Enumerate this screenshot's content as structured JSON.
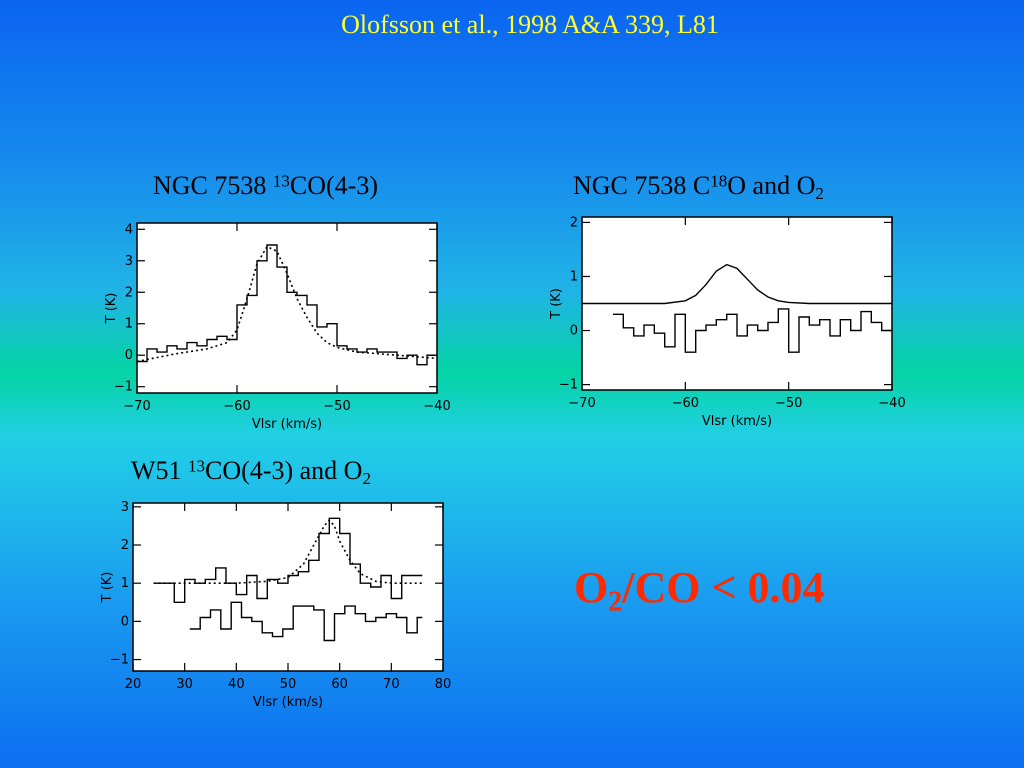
{
  "citation": "Olofsson et al., 1998 A&A 339, L81",
  "panels": [
    {
      "title": {
        "pre": "NGC 7538 ",
        "sup": "13",
        "main": "CO(4-3)",
        "sub": ""
      }
    },
    {
      "title": {
        "pre": "NGC 7538 C",
        "sup": "18",
        "main": "O and O",
        "sub": "2"
      }
    },
    {
      "title": {
        "pre": "W51 ",
        "sup": "13",
        "main": "CO(4-3) and O",
        "sub": "2"
      }
    }
  ],
  "ratio": {
    "pre": "O",
    "sub": "2",
    "post": "/CO < 0.04"
  },
  "chart_data": [
    {
      "type": "line",
      "xlim": [
        -70,
        -40
      ],
      "ylim": [
        -1.2,
        4.2
      ],
      "xticks": [
        -70,
        -60,
        -50,
        -40
      ],
      "xticklabels": [
        "−70",
        "−60",
        "−50",
        "−40"
      ],
      "yticks": [
        -1,
        0,
        1,
        2,
        3,
        4
      ],
      "yticklabels": [
        "−1",
        "0",
        "1",
        "2",
        "3",
        "4"
      ],
      "xlabel": "Vlsr (km/s)",
      "ylabel": "T (K)",
      "series": [
        {
          "style": "histogram",
          "x": [
            -70,
            -69,
            -68,
            -67,
            -66,
            -65,
            -64,
            -63,
            -62,
            -61,
            -60,
            -59,
            -58,
            -57,
            -56,
            -55,
            -54,
            -53,
            -52,
            -51,
            -50,
            -49,
            -48,
            -47,
            -46,
            -45,
            -44,
            -43,
            -42,
            -41,
            -40
          ],
          "y": [
            -0.2,
            0.2,
            0.1,
            0.3,
            0.2,
            0.4,
            0.3,
            0.5,
            0.6,
            0.5,
            1.6,
            1.9,
            3.0,
            3.5,
            2.8,
            2.0,
            1.9,
            1.6,
            0.9,
            1.0,
            0.3,
            0.2,
            0.1,
            0.2,
            0.1,
            0.1,
            -0.1,
            0.0,
            -0.3,
            0.0,
            0.0
          ]
        },
        {
          "style": "dotted",
          "x": [
            -70,
            -66,
            -63,
            -61,
            -60,
            -59,
            -58,
            -57,
            -56,
            -55,
            -54,
            -53,
            -52,
            -51,
            -50,
            -48,
            -46,
            -44,
            -42,
            -40
          ],
          "y": [
            -0.2,
            0.05,
            0.2,
            0.4,
            0.8,
            1.8,
            2.9,
            3.45,
            3.3,
            2.6,
            1.8,
            1.2,
            0.7,
            0.4,
            0.25,
            0.1,
            0.05,
            0.0,
            -0.05,
            -0.1
          ]
        }
      ]
    },
    {
      "type": "line",
      "xlim": [
        -70,
        -40
      ],
      "ylim": [
        -1.1,
        2.1
      ],
      "xticks": [
        -70,
        -60,
        -50,
        -40
      ],
      "xticklabels": [
        "−70",
        "−60",
        "−50",
        "−40"
      ],
      "yticks": [
        -1,
        0,
        1,
        2
      ],
      "yticklabels": [
        "−1",
        "0",
        "1",
        "2"
      ],
      "xlabel": "Vlsr (km/s)",
      "ylabel": "T (K)",
      "series": [
        {
          "style": "solid",
          "x": [
            -70,
            -62,
            -60,
            -59,
            -58,
            -57,
            -56,
            -55,
            -54,
            -53,
            -52,
            -51,
            -50,
            -48,
            -45,
            -40
          ],
          "y": [
            0.5,
            0.5,
            0.55,
            0.65,
            0.85,
            1.1,
            1.22,
            1.15,
            0.95,
            0.75,
            0.62,
            0.55,
            0.52,
            0.5,
            0.5,
            0.5
          ]
        },
        {
          "style": "histogram",
          "x": [
            -67,
            -66,
            -65,
            -64,
            -63,
            -62,
            -61,
            -60,
            -59,
            -58,
            -57,
            -56,
            -55,
            -54,
            -53,
            -52,
            -51,
            -50,
            -49,
            -48,
            -47,
            -46,
            -45,
            -44,
            -43,
            -42,
            -41,
            -40
          ],
          "y": [
            0.3,
            0.05,
            -0.1,
            0.1,
            -0.05,
            -0.3,
            0.3,
            -0.4,
            0.0,
            0.1,
            0.2,
            0.3,
            -0.1,
            0.1,
            0.0,
            0.15,
            0.4,
            -0.4,
            0.25,
            0.1,
            0.2,
            -0.1,
            0.2,
            0.0,
            0.35,
            0.15,
            0.0,
            0.0
          ]
        }
      ]
    },
    {
      "type": "line",
      "xlim": [
        20,
        80
      ],
      "ylim": [
        -1.3,
        3.1
      ],
      "xticks": [
        20,
        30,
        40,
        50,
        60,
        70,
        80
      ],
      "xticklabels": [
        "20",
        "30",
        "40",
        "50",
        "60",
        "70",
        "80"
      ],
      "yticks": [
        -1,
        0,
        1,
        2,
        3
      ],
      "yticklabels": [
        "−1",
        "0",
        "1",
        "2",
        "3"
      ],
      "xlabel": "Vlsr (km/s)",
      "ylabel": "T (K)",
      "series": [
        {
          "style": "histogram",
          "x": [
            24,
            26,
            28,
            30,
            32,
            34,
            36,
            38,
            40,
            42,
            44,
            46,
            48,
            50,
            52,
            54,
            56,
            58,
            60,
            62,
            64,
            66,
            68,
            70,
            72,
            74,
            76
          ],
          "y": [
            1.0,
            1.0,
            0.5,
            1.1,
            1.0,
            1.1,
            1.4,
            1.0,
            0.7,
            1.2,
            0.6,
            1.1,
            1.0,
            1.2,
            1.3,
            1.6,
            2.3,
            2.7,
            2.3,
            1.5,
            1.0,
            0.9,
            1.2,
            0.6,
            1.2,
            1.2,
            1.2
          ]
        },
        {
          "style": "dotted",
          "x": [
            24,
            30,
            40,
            46,
            50,
            53,
            55,
            57,
            58,
            59,
            60,
            62,
            64,
            67,
            70,
            76
          ],
          "y": [
            1.0,
            1.0,
            1.0,
            1.05,
            1.15,
            1.5,
            2.0,
            2.5,
            2.65,
            2.5,
            2.1,
            1.6,
            1.25,
            1.05,
            1.0,
            1.0
          ]
        },
        {
          "style": "histogram",
          "x": [
            31,
            33,
            35,
            37,
            39,
            41,
            43,
            45,
            47,
            49,
            51,
            53,
            55,
            57,
            59,
            61,
            63,
            65,
            67,
            69,
            71,
            73,
            75,
            76
          ],
          "y": [
            -0.2,
            0.1,
            0.3,
            -0.2,
            0.5,
            0.1,
            0.0,
            -0.3,
            -0.4,
            -0.2,
            0.4,
            0.4,
            0.3,
            -0.5,
            0.2,
            0.4,
            0.2,
            0.0,
            0.1,
            0.2,
            0.1,
            -0.3,
            0.1,
            0.1
          ]
        }
      ]
    }
  ]
}
